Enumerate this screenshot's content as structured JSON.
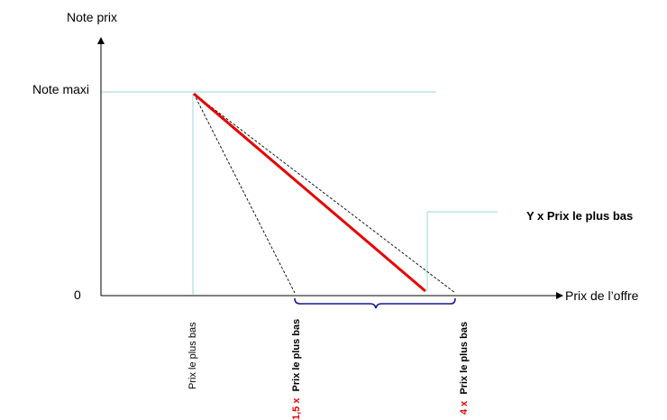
{
  "axes": {
    "y_label": "Note prix",
    "x_label": "Prix de l’offre",
    "y_max_label": "Note maxi",
    "origin_label": "0"
  },
  "annotation": {
    "callout": "Y x Prix le plus bas"
  },
  "x_ticks": {
    "lowest": {
      "text": "Prix le plus bas"
    },
    "mid": {
      "prefix": "1,5 x",
      "text": "Prix le plus bas"
    },
    "high": {
      "prefix": "4 x",
      "text": "Prix le plus bas"
    }
  },
  "colors": {
    "axis": "#000000",
    "guide": "#9fd6d6",
    "main_line": "#e60000",
    "accent_text": "#e60000",
    "brace": "#1a1a8c",
    "dashed": "#000000"
  }
}
